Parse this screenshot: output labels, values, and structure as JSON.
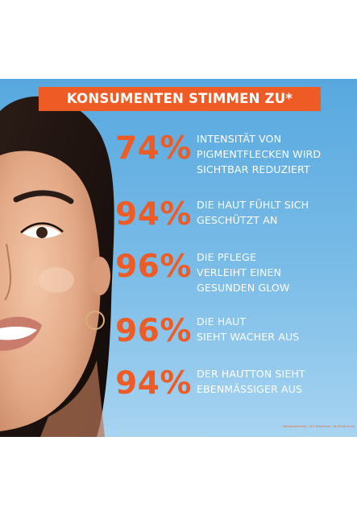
{
  "headline": "KONSUMENTEN STIMMEN ZU*",
  "stats": [
    {
      "percent": "74%",
      "lines": [
        "INTENSITÄT VON",
        "PIGMENTFLECKEN WIRD",
        "SICHTBAR REDUZIERT"
      ]
    },
    {
      "percent": "94%",
      "lines": [
        "DIE HAUT FÜHLT SICH",
        "GESCHÜTZT AN"
      ]
    },
    {
      "percent": "96%",
      "lines": [
        "DIE PFLEGE",
        "VERLEIHT EINEN",
        "GESUNDEN GLOW"
      ]
    },
    {
      "percent": "96%",
      "lines": [
        "DIE HAUT",
        "SIEHT WACHER AUS"
      ]
    },
    {
      "percent": "94%",
      "lines": [
        "DER HAUTTON SIEHT",
        "EBENMÄSSIGER AUS"
      ]
    }
  ],
  "footnote": "*Verbrauchertest, 150 Teilnehmer, 18–65 Jahre alt",
  "colors": {
    "accent": "#ee5b24",
    "panel_top": "#57a8df",
    "panel_bottom": "#a8d4f1",
    "text": "#ffffff"
  }
}
